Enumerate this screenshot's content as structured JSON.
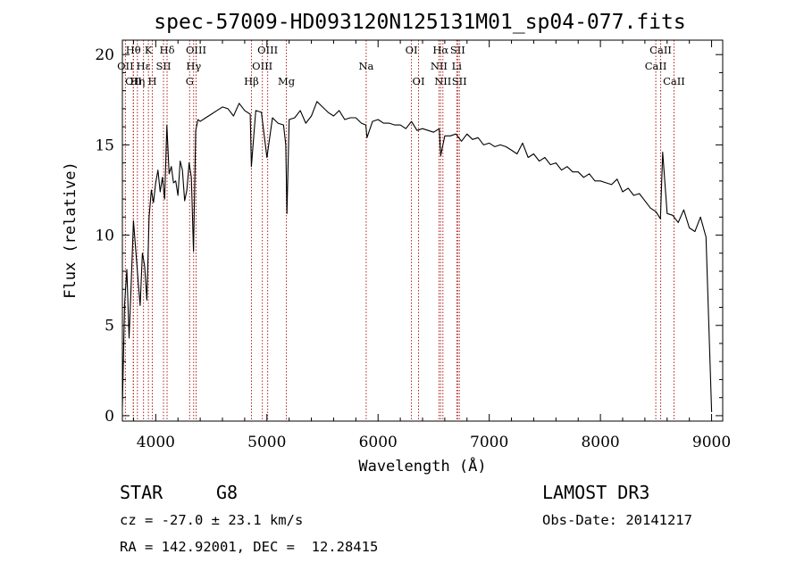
{
  "chart_data": {
    "type": "line",
    "title": "spec-57009-HD093120N125131M01_sp04-077.fits",
    "xlabel": "Wavelength (Å)",
    "ylabel": "Flux (relative)",
    "xlim": [
      3700,
      9100
    ],
    "ylim": [
      -0.3,
      20.8
    ],
    "x_ticks": [
      4000,
      5000,
      6000,
      7000,
      8000,
      9000
    ],
    "y_ticks": [
      0,
      5,
      10,
      15,
      20
    ],
    "grid": false,
    "legend": "none",
    "series": [
      {
        "x": [
          3700,
          3720,
          3740,
          3760,
          3780,
          3800,
          3820,
          3840,
          3860,
          3880,
          3900,
          3920,
          3940,
          3960,
          3980,
          4000,
          4020,
          4040,
          4060,
          4080,
          4100,
          4120,
          4140,
          4160,
          4180,
          4200,
          4220,
          4240,
          4260,
          4280,
          4300,
          4320,
          4340,
          4360,
          4380,
          4400,
          4450,
          4500,
          4550,
          4600,
          4650,
          4700,
          4750,
          4800,
          4850,
          4860,
          4900,
          4950,
          5000,
          5050,
          5100,
          5150,
          5170,
          5180,
          5200,
          5250,
          5300,
          5350,
          5400,
          5450,
          5500,
          5550,
          5600,
          5650,
          5700,
          5750,
          5800,
          5850,
          5890,
          5900,
          5950,
          6000,
          6050,
          6100,
          6150,
          6200,
          6250,
          6300,
          6350,
          6400,
          6450,
          6500,
          6550,
          6563,
          6600,
          6650,
          6700,
          6750,
          6800,
          6850,
          6900,
          6950,
          7000,
          7050,
          7100,
          7150,
          7200,
          7250,
          7300,
          7350,
          7400,
          7450,
          7500,
          7550,
          7600,
          7650,
          7700,
          7750,
          7800,
          7850,
          7900,
          7950,
          8000,
          8050,
          8100,
          8150,
          8200,
          8250,
          8300,
          8350,
          8400,
          8450,
          8500,
          8540,
          8560,
          8600,
          8650,
          8700,
          8750,
          8800,
          8850,
          8900,
          8950,
          9000
        ],
        "y": [
          0.5,
          6.2,
          8.1,
          4.3,
          7.5,
          10.8,
          9.2,
          7.6,
          6.1,
          9.0,
          8.3,
          6.4,
          11.0,
          12.5,
          11.8,
          12.9,
          13.6,
          12.4,
          13.2,
          12.0,
          16.1,
          13.4,
          13.8,
          12.9,
          13.0,
          12.2,
          14.1,
          13.6,
          11.9,
          12.5,
          14.0,
          13.2,
          9.1,
          15.8,
          16.4,
          16.3,
          16.5,
          16.7,
          16.9,
          17.1,
          17.0,
          16.6,
          17.3,
          16.9,
          16.7,
          13.8,
          16.9,
          16.8,
          14.3,
          16.5,
          16.2,
          16.1,
          15.0,
          11.2,
          16.4,
          16.5,
          16.9,
          16.2,
          16.6,
          17.4,
          17.1,
          16.8,
          16.6,
          16.9,
          16.4,
          16.5,
          16.5,
          16.2,
          16.1,
          15.4,
          16.3,
          16.4,
          16.2,
          16.2,
          16.1,
          16.1,
          15.9,
          16.3,
          15.8,
          15.9,
          15.8,
          15.7,
          15.9,
          14.4,
          15.5,
          15.5,
          15.6,
          15.2,
          15.6,
          15.3,
          15.4,
          15.0,
          15.1,
          14.9,
          15.0,
          14.9,
          14.7,
          14.5,
          15.1,
          14.3,
          14.5,
          14.1,
          14.3,
          13.9,
          14.0,
          13.6,
          13.8,
          13.5,
          13.5,
          13.2,
          13.4,
          13.0,
          13.0,
          12.9,
          12.8,
          13.1,
          12.4,
          12.6,
          12.2,
          12.3,
          11.9,
          11.5,
          11.3,
          10.9,
          14.6,
          11.2,
          11.1,
          10.7,
          11.4,
          10.4,
          10.2,
          11.0,
          9.9,
          0.2
        ]
      }
    ],
    "spectral_lines": [
      {
        "name": "OII",
        "wavelength": 3727,
        "row": 1
      },
      {
        "name": "Hθ",
        "wavelength": 3798,
        "row": 0
      },
      {
        "name": "OII",
        "wavelength": 3800,
        "row": 2
      },
      {
        "name": "Hη",
        "wavelength": 3835,
        "row": 2
      },
      {
        "name": "Hε",
        "wavelength": 3890,
        "row": 1
      },
      {
        "name": "K",
        "wavelength": 3934,
        "row": 0
      },
      {
        "name": "H",
        "wavelength": 3969,
        "row": 2
      },
      {
        "name": "SII",
        "wavelength": 4070,
        "row": 1
      },
      {
        "name": "Hδ",
        "wavelength": 4102,
        "row": 0
      },
      {
        "name": "OIII",
        "wavelength": 4363,
        "row": 0
      },
      {
        "name": "Hγ",
        "wavelength": 4341,
        "row": 1
      },
      {
        "name": "G",
        "wavelength": 4305,
        "row": 2
      },
      {
        "name": "Hβ",
        "wavelength": 4861,
        "row": 2
      },
      {
        "name": "OIII",
        "wavelength": 4959,
        "row": 1
      },
      {
        "name": "OIII",
        "wavelength": 5007,
        "row": 0
      },
      {
        "name": "Mg",
        "wavelength": 5175,
        "row": 2
      },
      {
        "name": "Na",
        "wavelength": 5893,
        "row": 1
      },
      {
        "name": "OI",
        "wavelength": 6300,
        "row": 0
      },
      {
        "name": "OI",
        "wavelength": 6364,
        "row": 2
      },
      {
        "name": "Hα",
        "wavelength": 6563,
        "row": 0
      },
      {
        "name": "NII",
        "wavelength": 6548,
        "row": 1
      },
      {
        "name": "NII",
        "wavelength": 6583,
        "row": 2
      },
      {
        "name": "SII",
        "wavelength": 6716,
        "row": 0
      },
      {
        "name": "Li",
        "wavelength": 6708,
        "row": 1
      },
      {
        "name": "SII",
        "wavelength": 6731,
        "row": 2
      },
      {
        "name": "CaII",
        "wavelength": 8542,
        "row": 0
      },
      {
        "name": "CaII",
        "wavelength": 8498,
        "row": 1
      },
      {
        "name": "CaII",
        "wavelength": 8662,
        "row": 2
      }
    ]
  },
  "info": {
    "object_class": "STAR",
    "subclass": "G8",
    "survey": "LAMOST DR3",
    "cz": "cz = -27.0 ± 23.1 km/s",
    "obs_date": "Obs-Date: 20141217",
    "coords": "RA = 142.92001, DEC =  12.28415"
  },
  "colors": {
    "spectrum": "#000000",
    "line_marker": "#b0201e"
  }
}
